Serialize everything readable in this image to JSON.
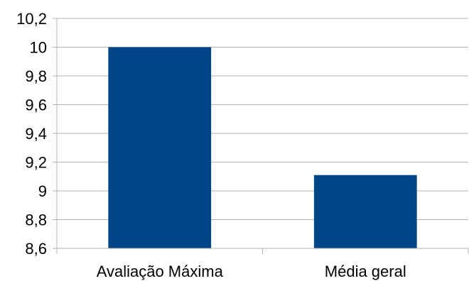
{
  "chart_data": {
    "type": "bar",
    "categories": [
      "Avaliação Máxima",
      "Média geral"
    ],
    "values": [
      10,
      9.11
    ],
    "ylim": [
      8.6,
      10.2
    ],
    "yticks": [
      8.6,
      8.8,
      9,
      9.2,
      9.4,
      9.6,
      9.8,
      10,
      10.2
    ],
    "ytick_labels": [
      "8,6",
      "8,8",
      "9",
      "9,2",
      "9,4",
      "9,6",
      "9,8",
      "10",
      "10,2"
    ],
    "grid": true,
    "legend": "none",
    "colors": {
      "bar": "#004586",
      "grid": "#b3b3b3",
      "axis": "#b3b3b3"
    }
  }
}
